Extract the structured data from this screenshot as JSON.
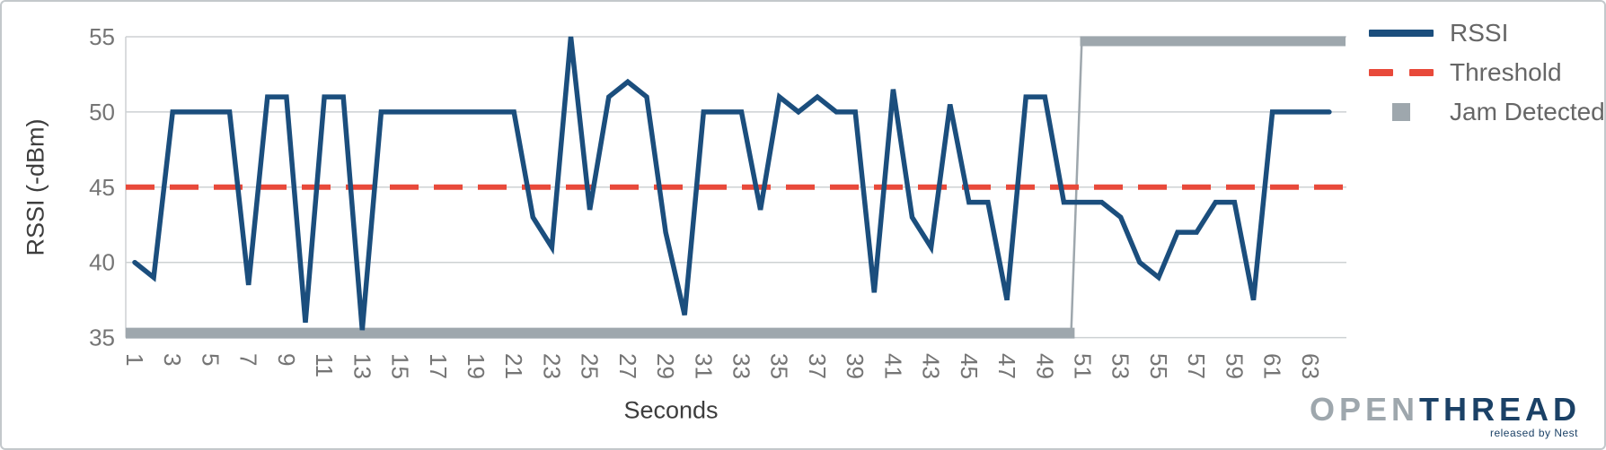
{
  "chart_data": {
    "type": "line",
    "title": "",
    "xlabel": "Seconds",
    "ylabel": "RSSI (-dBm)",
    "xlim": [
      1,
      64
    ],
    "ylim": [
      35,
      55
    ],
    "grid": true,
    "legend_position": "top-right",
    "x_ticks": [
      1,
      3,
      5,
      7,
      9,
      11,
      13,
      15,
      17,
      19,
      21,
      23,
      25,
      27,
      29,
      31,
      33,
      35,
      37,
      39,
      41,
      43,
      45,
      47,
      49,
      51,
      53,
      55,
      57,
      59,
      61,
      63
    ],
    "y_ticks": [
      55,
      50,
      45,
      40,
      35
    ],
    "x": [
      1,
      2,
      3,
      4,
      5,
      6,
      7,
      8,
      9,
      10,
      11,
      12,
      13,
      14,
      15,
      16,
      17,
      18,
      19,
      20,
      21,
      22,
      23,
      24,
      25,
      26,
      27,
      28,
      29,
      30,
      31,
      32,
      33,
      34,
      35,
      36,
      37,
      38,
      39,
      40,
      41,
      42,
      43,
      44,
      45,
      46,
      47,
      48,
      49,
      50,
      51,
      52,
      53,
      54,
      55,
      56,
      57,
      58,
      59,
      60,
      61,
      62,
      63,
      64
    ],
    "series": [
      {
        "name": "RSSI",
        "type": "line",
        "style": "solid",
        "color": "#1B4E7D",
        "values": [
          40,
          39,
          50,
          50,
          50,
          50,
          38.5,
          51,
          51,
          36,
          51,
          51,
          35.5,
          50,
          50,
          50,
          50,
          50,
          50,
          50,
          50,
          43,
          41,
          55,
          43.5,
          51,
          52,
          51,
          42,
          36.5,
          50,
          50,
          50,
          43.5,
          51,
          50,
          51,
          50,
          50,
          38,
          51.5,
          43,
          41,
          50.5,
          44,
          44,
          37.5,
          51,
          51,
          44,
          44,
          44,
          43,
          40,
          39,
          42,
          42,
          44,
          44,
          37.5,
          50,
          50,
          50,
          50
        ]
      },
      {
        "name": "Threshold",
        "type": "line",
        "style": "dashed",
        "color": "#E8493A",
        "value": 45
      },
      {
        "name": "Jam Detected",
        "type": "step",
        "color": "#9EA7AD",
        "low_value": 35.3,
        "high_value": 54.7,
        "low_until_second": 50,
        "high_from_second": 51,
        "last_second": 64
      }
    ]
  },
  "legend": {
    "items": [
      {
        "label": "RSSI",
        "swatch": "line-icon"
      },
      {
        "label": "Threshold",
        "swatch": "dashes-icon"
      },
      {
        "label": "Jam Detected",
        "swatch": "square-icon"
      }
    ]
  },
  "branding": {
    "logo_part1": "OPEN",
    "logo_part2": "THREAD",
    "tagline": "released by Nest"
  },
  "colors": {
    "rssi": "#1B4E7D",
    "threshold": "#E8493A",
    "jam": "#9EA7AD",
    "gridline": "#cdd1d3",
    "tick_label": "#757575",
    "axis_title": "#3d3d3d",
    "legend_text": "#666666",
    "logo_gray": "#9EA7AD",
    "logo_navy": "#1B4166"
  }
}
